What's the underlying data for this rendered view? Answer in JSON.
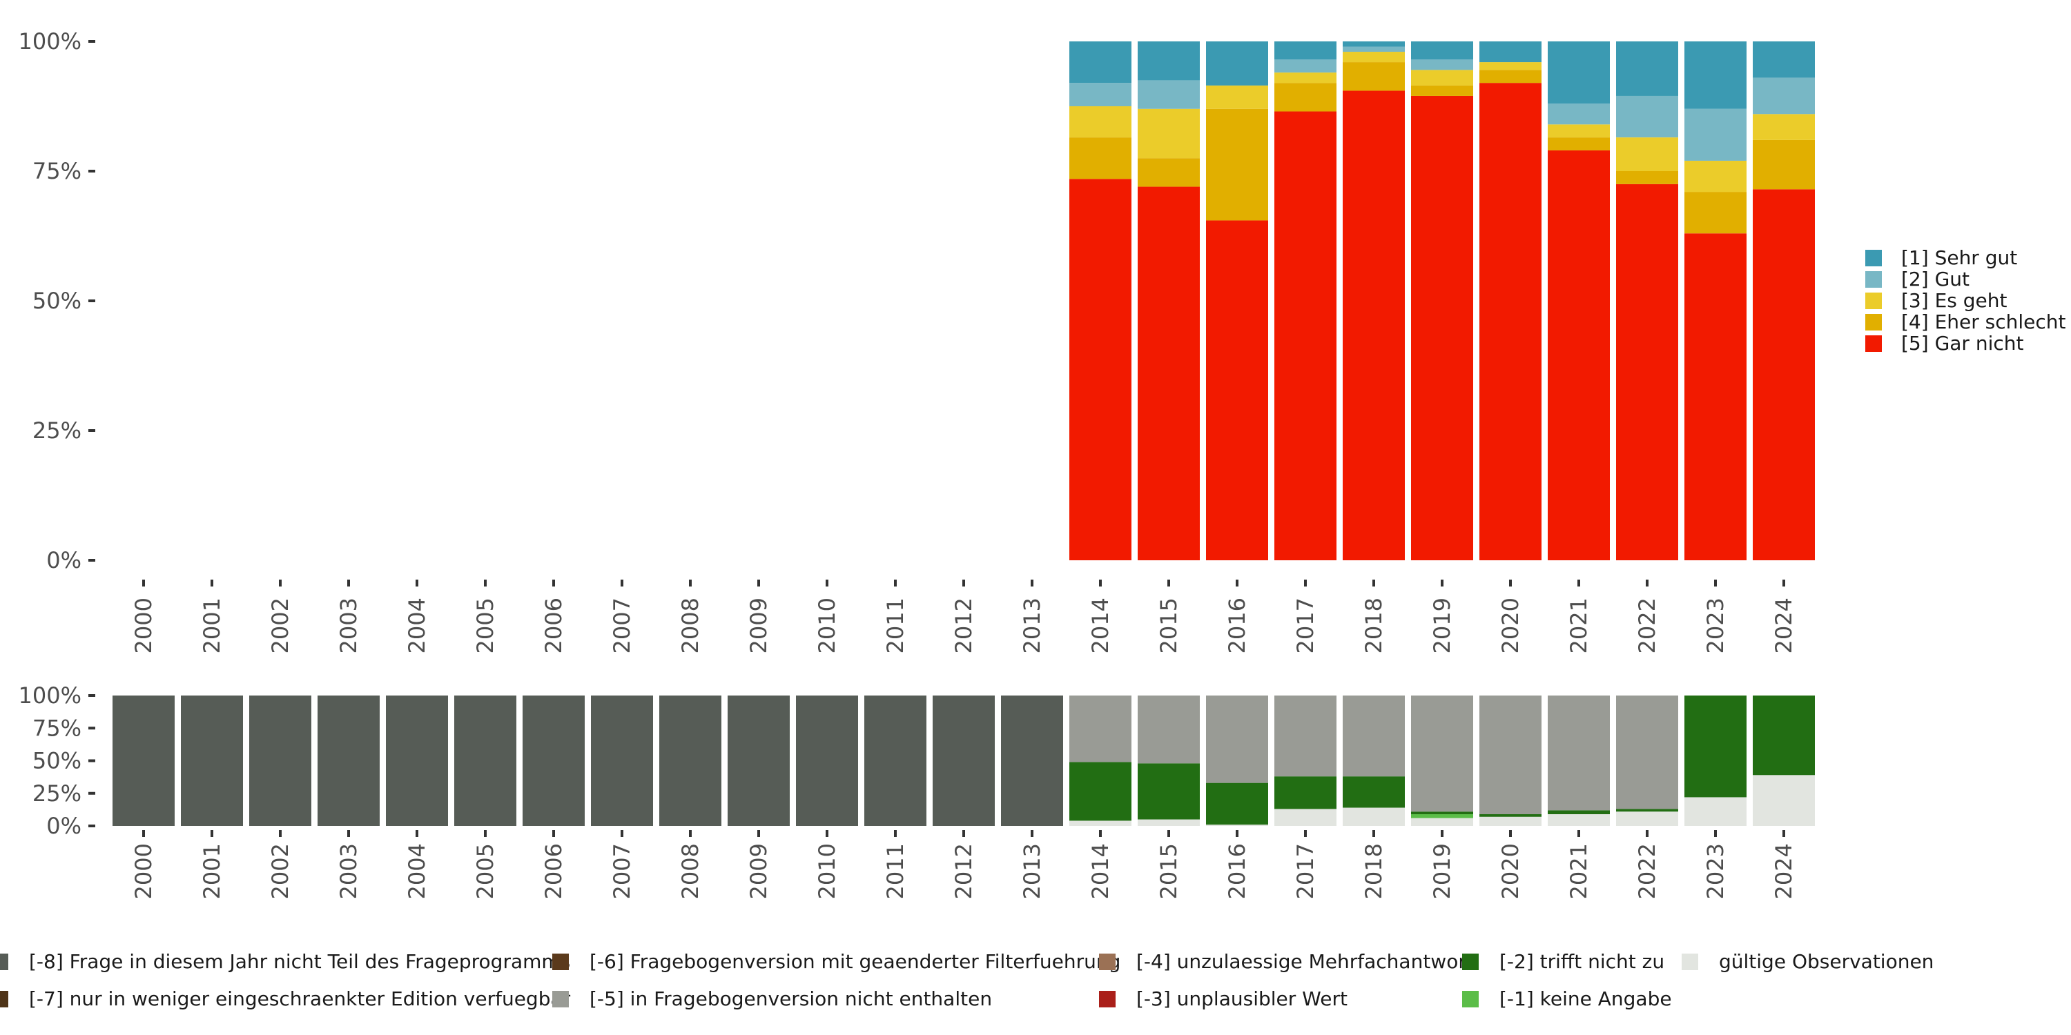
{
  "chart_data": [
    {
      "type": "bar",
      "stacked": true,
      "normalized": true,
      "categories": [
        "2000",
        "2001",
        "2002",
        "2003",
        "2004",
        "2005",
        "2006",
        "2007",
        "2008",
        "2009",
        "2010",
        "2011",
        "2012",
        "2013",
        "2014",
        "2015",
        "2016",
        "2017",
        "2018",
        "2019",
        "2020",
        "2021",
        "2022",
        "2023",
        "2024"
      ],
      "ylim": [
        0,
        100
      ],
      "yticks": [
        "0%",
        "25%",
        "50%",
        "75%",
        "100%"
      ],
      "legend_position": "right",
      "series": [
        {
          "name": "[5] Gar nicht",
          "color": "#f21a00",
          "values": [
            0,
            0,
            0,
            0,
            0,
            0,
            0,
            0,
            0,
            0,
            0,
            0,
            0,
            0,
            73.5,
            72,
            65.5,
            86.5,
            90.5,
            89.5,
            92,
            79,
            72.5,
            63,
            71.5
          ]
        },
        {
          "name": "[4] Eher schlecht",
          "color": "#e1af00",
          "values": [
            0,
            0,
            0,
            0,
            0,
            0,
            0,
            0,
            0,
            0,
            0,
            0,
            0,
            0,
            8,
            5.5,
            21.5,
            5.5,
            5.5,
            2,
            2.5,
            2.5,
            2.5,
            8,
            9.5
          ]
        },
        {
          "name": "[3] Es geht",
          "color": "#ebcc2a",
          "values": [
            0,
            0,
            0,
            0,
            0,
            0,
            0,
            0,
            0,
            0,
            0,
            0,
            0,
            0,
            6,
            9.5,
            4.5,
            2,
            2,
            3,
            1.5,
            2.5,
            6.5,
            6,
            5
          ]
        },
        {
          "name": "[2] Gut",
          "color": "#78b7c5",
          "values": [
            0,
            0,
            0,
            0,
            0,
            0,
            0,
            0,
            0,
            0,
            0,
            0,
            0,
            0,
            4.5,
            5.5,
            0,
            2.5,
            1,
            2,
            0,
            4,
            8,
            10,
            7
          ]
        },
        {
          "name": "[1] Sehr gut",
          "color": "#3b9ab2",
          "values": [
            0,
            0,
            0,
            0,
            0,
            0,
            0,
            0,
            0,
            0,
            0,
            0,
            0,
            0,
            8,
            7.5,
            8.5,
            3.5,
            1,
            3.5,
            4,
            12,
            10.5,
            13,
            7
          ]
        }
      ]
    },
    {
      "type": "bar",
      "stacked": true,
      "normalized": true,
      "categories": [
        "2000",
        "2001",
        "2002",
        "2003",
        "2004",
        "2005",
        "2006",
        "2007",
        "2008",
        "2009",
        "2010",
        "2011",
        "2012",
        "2013",
        "2014",
        "2015",
        "2016",
        "2017",
        "2018",
        "2019",
        "2020",
        "2021",
        "2022",
        "2023",
        "2024"
      ],
      "ylim": [
        0,
        100
      ],
      "yticks": [
        "0%",
        "25%",
        "50%",
        "75%",
        "100%"
      ],
      "legend_position": "bottom",
      "series": [
        {
          "name": "gültige Observationen",
          "color": "#e2e5e0",
          "values": [
            0,
            0,
            0,
            0,
            0,
            0,
            0,
            0,
            0,
            0,
            0,
            0,
            0,
            0,
            4,
            5,
            1,
            13,
            14,
            6,
            7,
            9,
            11,
            22,
            39
          ]
        },
        {
          "name": "[-1] keine Angabe",
          "color": "#5bbd48",
          "values": [
            0,
            0,
            0,
            0,
            0,
            0,
            0,
            0,
            0,
            0,
            0,
            0,
            0,
            0,
            0,
            0,
            0,
            0,
            0,
            3,
            0,
            0,
            0,
            0,
            0
          ]
        },
        {
          "name": "[-2] trifft nicht zu",
          "color": "#226e13",
          "values": [
            0,
            0,
            0,
            0,
            0,
            0,
            0,
            0,
            0,
            0,
            0,
            0,
            0,
            0,
            45,
            43,
            32,
            25,
            24,
            2,
            2,
            3,
            2,
            78,
            61
          ]
        },
        {
          "name": "[-3] unplausibler Wert",
          "color": "#aa1f1a",
          "values": [
            0,
            0,
            0,
            0,
            0,
            0,
            0,
            0,
            0,
            0,
            0,
            0,
            0,
            0,
            0,
            0,
            0,
            0,
            0,
            0,
            0,
            0,
            0,
            0,
            0
          ]
        },
        {
          "name": "[-4] unzulaessige Mehrfachantwort",
          "color": "#9b7155",
          "values": [
            0,
            0,
            0,
            0,
            0,
            0,
            0,
            0,
            0,
            0,
            0,
            0,
            0,
            0,
            0,
            0,
            0,
            0,
            0,
            0,
            0,
            0,
            0,
            0,
            0
          ]
        },
        {
          "name": "[-5] in Fragebogenversion nicht enthalten",
          "color": "#999b95",
          "values": [
            0,
            0,
            0,
            0,
            0,
            0,
            0,
            0,
            0,
            0,
            0,
            0,
            0,
            0,
            51,
            52,
            67,
            62,
            62,
            89,
            91,
            88,
            87,
            0,
            0
          ]
        },
        {
          "name": "[-6] Fragebogenversion mit geaenderter Filterfuehrung",
          "color": "#5b3a1c",
          "values": [
            0,
            0,
            0,
            0,
            0,
            0,
            0,
            0,
            0,
            0,
            0,
            0,
            0,
            0,
            0,
            0,
            0,
            0,
            0,
            0,
            0,
            0,
            0,
            0,
            0
          ]
        },
        {
          "name": "[-7] nur in weniger eingeschraenkter Edition verfuegbar",
          "color": "#4f3418",
          "values": [
            0,
            0,
            0,
            0,
            0,
            0,
            0,
            0,
            0,
            0,
            0,
            0,
            0,
            0,
            0,
            0,
            0,
            0,
            0,
            0,
            0,
            0,
            0,
            0,
            0
          ]
        },
        {
          "name": "[-8] Frage in diesem Jahr nicht Teil des Frageprogramms",
          "color": "#565c56",
          "values": [
            100,
            100,
            100,
            100,
            100,
            100,
            100,
            100,
            100,
            100,
            100,
            100,
            100,
            100,
            0,
            0,
            0,
            0,
            0,
            0,
            0,
            0,
            0,
            0,
            0
          ]
        }
      ]
    }
  ],
  "legends": {
    "top_order": [
      "[1] Sehr gut",
      "[2] Gut",
      "[3] Es geht",
      "[4] Eher schlecht",
      "[5] Gar nicht"
    ],
    "bottom_order": [
      "[-8] Frage in diesem Jahr nicht Teil des Frageprogramms",
      "[-7] nur in weniger eingeschraenkter Edition verfuegbar",
      "[-6] Fragebogenversion mit geaenderter Filterfuehrung",
      "[-5] in Fragebogenversion nicht enthalten",
      "[-4] unzulaessige Mehrfachantwort",
      "[-3] unplausibler Wert",
      "[-2] trifft nicht zu",
      "[-1] keine Angabe",
      "gültige Observationen"
    ]
  }
}
